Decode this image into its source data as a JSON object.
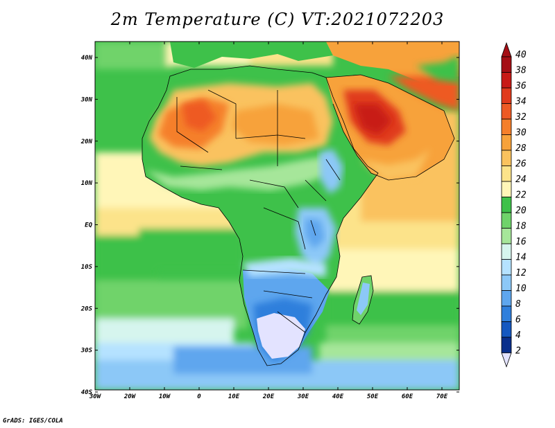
{
  "title": "2m Temperature (C) VT:2021072203",
  "footer": "GrADS: IGES/COLA",
  "map": {
    "lon_labels": [
      "30W",
      "20W",
      "10W",
      "0",
      "10E",
      "20E",
      "30E",
      "40E",
      "50E",
      "60E",
      "70E"
    ],
    "lat_labels": [
      "40N",
      "30N",
      "20N",
      "10N",
      "EQ",
      "10S",
      "20S",
      "30S",
      "40S"
    ]
  },
  "colorbar": {
    "labels": [
      "40",
      "38",
      "36",
      "34",
      "32",
      "30",
      "28",
      "26",
      "24",
      "22",
      "20",
      "18",
      "16",
      "14",
      "12",
      "10",
      "8",
      "6",
      "4",
      "2"
    ],
    "colors": [
      "#a50f15",
      "#c81a16",
      "#e03a1c",
      "#ee5a24",
      "#f57f2a",
      "#f7a23b",
      "#fac25e",
      "#fce38a",
      "#fff6b8",
      "#3ec14a",
      "#6fd36a",
      "#a6e69a",
      "#d6f5ee",
      "#b5e2ff",
      "#8cc8f7",
      "#5ea6ee",
      "#2f7fdc",
      "#1558c0",
      "#0a2f8c",
      "#e3e3ff"
    ]
  }
}
